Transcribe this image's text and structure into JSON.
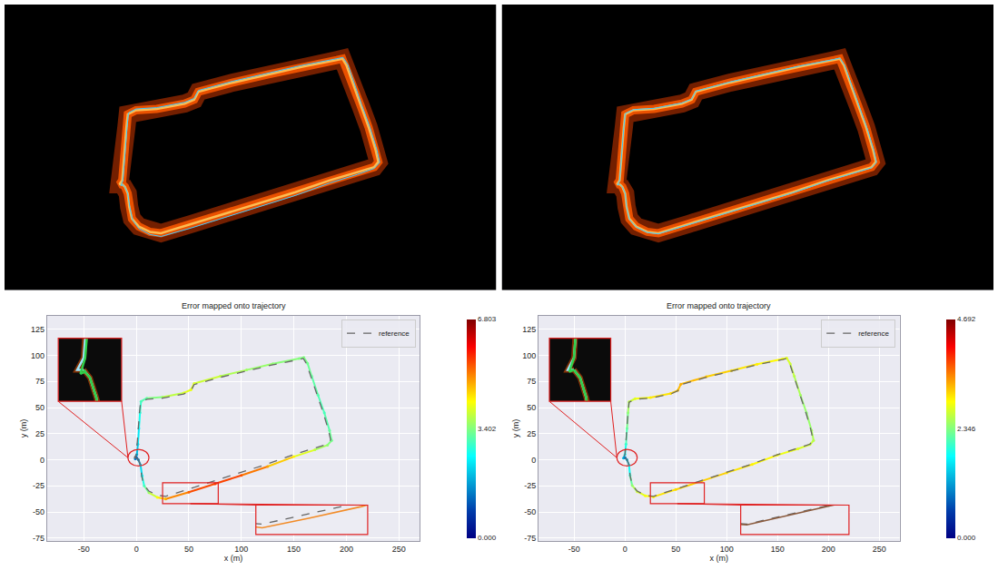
{
  "chart_data": [
    {
      "type": "line",
      "title": "Error mapped onto trajectory",
      "x_label": "x (m)",
      "y_label": "y (m)",
      "xlim": [
        -85,
        270
      ],
      "xticks": [
        -50,
        0,
        50,
        100,
        150,
        200,
        250
      ],
      "ylim": [
        -78,
        138
      ],
      "yticks": [
        -75,
        -50,
        -25,
        0,
        25,
        50,
        75,
        100,
        125
      ],
      "grid": true,
      "legend": "upper right",
      "series": [
        {
          "name": "reference",
          "line_style": "dashed",
          "color": "#666666",
          "x": [
            0,
            2,
            4,
            5,
            7,
            12,
            20,
            28,
            50,
            75,
            100,
            125,
            150,
            170,
            182,
            185,
            183,
            178,
            172,
            166,
            162,
            159,
            155,
            130,
            105,
            80,
            55,
            52,
            45,
            25,
            10,
            4,
            3,
            2,
            1,
            0,
            -2,
            0
          ],
          "y": [
            2,
            0,
            -5,
            -15,
            -24,
            -30,
            -34,
            -35,
            -28,
            -20,
            -12,
            -4,
            5,
            11,
            15,
            19,
            28,
            45,
            62,
            80,
            92,
            97,
            96,
            91,
            85,
            79,
            72,
            66,
            63,
            59,
            58,
            55,
            45,
            30,
            15,
            5,
            2,
            2
          ]
        },
        {
          "color": "#f28c28",
          "x": [
            0,
            2,
            4,
            5.5,
            7.5,
            12,
            20,
            28,
            50,
            75,
            100,
            125,
            150,
            170,
            182,
            186,
            184,
            179,
            173,
            167,
            163,
            159.5,
            155,
            130,
            105,
            80,
            55,
            52,
            45,
            25,
            10,
            4.5,
            3.5,
            2.5,
            1.5,
            0.5,
            -1,
            0.5
          ],
          "y": [
            2,
            0,
            -5,
            -15.5,
            -25,
            -31.5,
            -36,
            -37.5,
            -31,
            -23,
            -15,
            -6.5,
            3,
            9.5,
            14,
            18.5,
            28,
            45,
            62,
            80,
            92.5,
            98,
            97,
            92,
            86,
            80,
            73,
            67,
            64,
            60,
            59,
            56,
            45,
            30,
            15,
            5,
            1,
            1.5
          ],
          "error": [
            1.2,
            1.5,
            2.0,
            2.5,
            3.0,
            3.6,
            4.2,
            4.8,
            5.3,
            5.6,
            5.4,
            4.9,
            4.3,
            3.8,
            3.5,
            3.3,
            3.2,
            3.0,
            3.1,
            3.2,
            3.3,
            3.4,
            3.4,
            3.5,
            3.6,
            3.8,
            4.0,
            4.1,
            4.0,
            3.6,
            3.2,
            3.0,
            2.8,
            2.5,
            2.2,
            1.8,
            1.4,
            1.2
          ]
        }
      ],
      "colorbar": {
        "lim": [
          0,
          6.803
        ],
        "ticks": [
          {
            "value": 0,
            "label": "0.000"
          },
          3.402,
          6.803
        ]
      },
      "insets": [
        {
          "xlim": [
            -8,
            12
          ],
          "ylim": [
            -6,
            10
          ]
        },
        {
          "xlim": [
            25,
            78
          ],
          "ylim": [
            -42,
            -22
          ]
        }
      ]
    },
    {
      "type": "line",
      "title": "Error mapped onto trajectory",
      "x_label": "x (m)",
      "y_label": "y (m)",
      "xlim": [
        -85,
        270
      ],
      "xticks": [
        -50,
        0,
        50,
        100,
        150,
        200,
        250
      ],
      "ylim": [
        -78,
        138
      ],
      "yticks": [
        -75,
        -50,
        -25,
        0,
        25,
        50,
        75,
        100,
        125
      ],
      "grid": true,
      "legend": "upper right",
      "series": [
        {
          "name": "reference",
          "line_style": "dashed",
          "color": "#666666",
          "x": [
            0,
            2,
            4,
            5,
            7,
            12,
            20,
            28,
            50,
            75,
            100,
            125,
            150,
            170,
            182,
            185,
            183,
            178,
            172,
            166,
            162,
            159,
            155,
            130,
            105,
            80,
            55,
            52,
            45,
            25,
            10,
            4,
            3,
            2,
            1,
            0,
            -2,
            0
          ],
          "y": [
            2,
            0,
            -5,
            -15,
            -24,
            -30,
            -34,
            -35,
            -28,
            -20,
            -12,
            -4,
            5,
            11,
            15,
            19,
            28,
            45,
            62,
            80,
            92,
            97,
            96,
            91,
            85,
            79,
            72,
            66,
            63,
            59,
            58,
            55,
            45,
            30,
            15,
            5,
            2,
            2
          ]
        },
        {
          "color": "#8a5a3c",
          "x": [
            0,
            2,
            4,
            5,
            7,
            12,
            20,
            28,
            50,
            75,
            100,
            125,
            150,
            170,
            182,
            185.5,
            183.5,
            178.5,
            172.5,
            166.5,
            162.5,
            159,
            155,
            130,
            105,
            80,
            55,
            52,
            45,
            25,
            10,
            4,
            3,
            2,
            1,
            0,
            -1.5,
            0
          ],
          "y": [
            2,
            0,
            -5,
            -15,
            -24.5,
            -30.5,
            -34.5,
            -35.5,
            -28.5,
            -20.5,
            -12.5,
            -4.5,
            4.5,
            10.5,
            14.5,
            18.5,
            28,
            45,
            62,
            80,
            92,
            97.5,
            96.5,
            91.5,
            85.5,
            79.5,
            72.5,
            66.5,
            63.5,
            59.5,
            58.5,
            55.5,
            45,
            30,
            15,
            5,
            1.5,
            2
          ],
          "error": [
            1.0,
            1.3,
            1.6,
            2.0,
            2.4,
            2.7,
            2.9,
            3.0,
            3.1,
            3.2,
            3.1,
            3.0,
            2.9,
            2.8,
            2.7,
            2.6,
            2.5,
            2.4,
            2.5,
            2.6,
            2.7,
            2.8,
            2.9,
            3.0,
            3.1,
            3.2,
            3.3,
            3.2,
            3.1,
            3.0,
            2.8,
            2.6,
            2.4,
            2.2,
            2.0,
            1.7,
            1.3,
            1.0
          ]
        }
      ],
      "colorbar": {
        "lim": [
          0,
          4.692
        ],
        "ticks": [
          {
            "value": 0,
            "label": "0.000"
          },
          2.346,
          4.692
        ]
      },
      "insets": [
        {
          "xlim": [
            -8,
            12
          ],
          "ylim": [
            -6,
            10
          ]
        },
        {
          "xlim": [
            25,
            78
          ],
          "ylim": [
            -42,
            -22
          ]
        }
      ]
    }
  ]
}
